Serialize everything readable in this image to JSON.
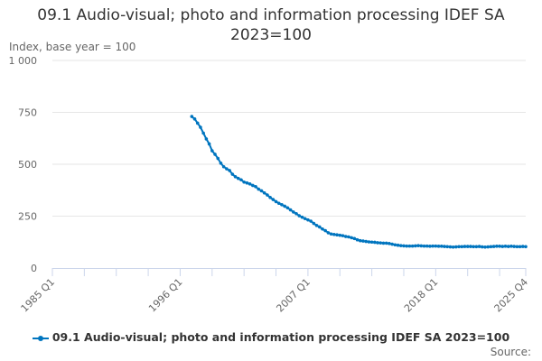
{
  "chart_data": {
    "type": "line",
    "title": "09.1 Audio-visual; photo and information processing IDEF SA 2023=100",
    "ylabel": "Index, base year = 100",
    "xlabel": "",
    "ylim": [
      0,
      1000
    ],
    "y_ticks": [
      "0",
      "250",
      "500",
      "750",
      "1 000"
    ],
    "y_tick_values": [
      0,
      250,
      500,
      750,
      1000
    ],
    "x_range": [
      "1985 Q1",
      "2025 Q4"
    ],
    "x_tick_labels": [
      "1985 Q1",
      "1996 Q1",
      "2007 Q1",
      "2018 Q1",
      "2025 Q4"
    ],
    "grid": true,
    "legend_position": "bottom",
    "series": [
      {
        "name": "09.1 Audio-visual; photo and information processing IDEF SA 2023=100",
        "color": "#0075bf",
        "start_period": "1997 Q1",
        "frequency": "quarterly",
        "values": [
          730,
          718,
          698,
          678,
          650,
          622,
          598,
          565,
          548,
          528,
          505,
          488,
          478,
          470,
          452,
          440,
          432,
          425,
          414,
          410,
          405,
          398,
          392,
          380,
          372,
          362,
          352,
          340,
          330,
          320,
          312,
          305,
          298,
          290,
          280,
          270,
          262,
          252,
          245,
          238,
          232,
          226,
          215,
          205,
          198,
          188,
          180,
          170,
          164,
          162,
          160,
          158,
          156,
          152,
          150,
          146,
          142,
          136,
          132,
          130,
          128,
          126,
          125,
          124,
          122,
          121,
          120,
          120,
          118,
          115,
          112,
          110,
          108,
          107,
          106,
          106,
          106,
          107,
          108,
          107,
          106,
          106,
          105,
          106,
          106,
          105,
          105,
          104,
          103,
          102,
          101,
          102,
          103,
          103,
          104,
          104,
          104,
          103,
          103,
          104,
          102,
          101,
          102,
          103,
          104,
          105,
          105,
          104,
          105,
          104,
          105,
          104,
          103,
          103,
          104,
          103
        ]
      }
    ]
  },
  "source_label": "Source:"
}
